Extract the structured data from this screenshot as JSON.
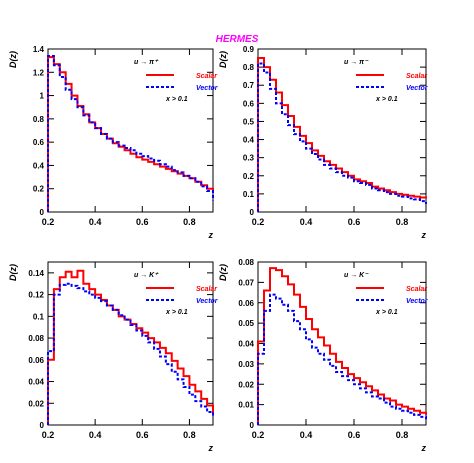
{
  "figure": {
    "title": "HERMES",
    "title_color": "#ff00ff"
  },
  "colors": {
    "scalar": "#ff0000",
    "vector": "#0000ff",
    "axis": "#000000"
  },
  "legend": {
    "scalar": "Scalar",
    "vector": "Vector"
  },
  "cut": "x > 0.1",
  "chart_data": [
    {
      "type": "line",
      "process": "u → π⁺",
      "ylabel": "D(z)",
      "xlabel": "z",
      "xlim": [
        0.2,
        0.9
      ],
      "ylim": [
        0,
        1.4
      ],
      "xticks": [
        0.2,
        0.4,
        0.6,
        0.8
      ],
      "yticks": [
        0,
        0.2,
        0.4,
        0.6,
        0.8,
        1,
        1.2,
        1.4
      ],
      "x": [
        0.2,
        0.225,
        0.25,
        0.275,
        0.3,
        0.325,
        0.35,
        0.375,
        0.4,
        0.425,
        0.45,
        0.475,
        0.5,
        0.525,
        0.55,
        0.575,
        0.6,
        0.625,
        0.65,
        0.675,
        0.7,
        0.725,
        0.75,
        0.775,
        0.8,
        0.825,
        0.85,
        0.875,
        0.9
      ],
      "series": [
        {
          "name": "Scalar",
          "values": [
            1.33,
            1.27,
            1.2,
            1.1,
            1.0,
            0.91,
            0.84,
            0.77,
            0.72,
            0.67,
            0.63,
            0.59,
            0.56,
            0.53,
            0.5,
            0.47,
            0.45,
            0.43,
            0.41,
            0.39,
            0.37,
            0.35,
            0.33,
            0.31,
            0.29,
            0.26,
            0.23,
            0.2,
            0.17
          ]
        },
        {
          "name": "Vector",
          "values": [
            1.34,
            1.26,
            1.16,
            1.05,
            0.97,
            0.9,
            0.83,
            0.77,
            0.72,
            0.67,
            0.63,
            0.6,
            0.57,
            0.55,
            0.53,
            0.5,
            0.48,
            0.46,
            0.44,
            0.41,
            0.39,
            0.36,
            0.34,
            0.31,
            0.29,
            0.26,
            0.22,
            0.18,
            0.1
          ]
        }
      ]
    },
    {
      "type": "line",
      "process": "u → π⁻",
      "ylabel": "D(z)",
      "xlabel": "z",
      "xlim": [
        0.2,
        0.9
      ],
      "ylim": [
        0,
        0.9
      ],
      "xticks": [
        0.2,
        0.4,
        0.6,
        0.8
      ],
      "yticks": [
        0,
        0.1,
        0.2,
        0.3,
        0.4,
        0.5,
        0.6,
        0.7,
        0.8,
        0.9
      ],
      "x": [
        0.2,
        0.225,
        0.25,
        0.275,
        0.3,
        0.325,
        0.35,
        0.375,
        0.4,
        0.425,
        0.45,
        0.475,
        0.5,
        0.525,
        0.55,
        0.575,
        0.6,
        0.625,
        0.65,
        0.675,
        0.7,
        0.725,
        0.75,
        0.775,
        0.8,
        0.825,
        0.85,
        0.875,
        0.9
      ],
      "series": [
        {
          "name": "Scalar",
          "values": [
            0.85,
            0.8,
            0.73,
            0.66,
            0.59,
            0.53,
            0.47,
            0.42,
            0.38,
            0.34,
            0.31,
            0.28,
            0.26,
            0.24,
            0.22,
            0.2,
            0.18,
            0.17,
            0.16,
            0.14,
            0.13,
            0.12,
            0.11,
            0.1,
            0.095,
            0.09,
            0.085,
            0.08,
            0.075
          ]
        },
        {
          "name": "Vector",
          "values": [
            0.82,
            0.77,
            0.68,
            0.6,
            0.54,
            0.48,
            0.43,
            0.39,
            0.35,
            0.32,
            0.29,
            0.26,
            0.24,
            0.22,
            0.2,
            0.19,
            0.17,
            0.16,
            0.15,
            0.13,
            0.12,
            0.11,
            0.1,
            0.09,
            0.085,
            0.075,
            0.07,
            0.06,
            0.045
          ]
        }
      ]
    },
    {
      "type": "line",
      "process": "u → K⁺",
      "ylabel": "D(z)",
      "xlabel": "z",
      "xlim": [
        0.2,
        0.9
      ],
      "ylim": [
        0,
        0.15
      ],
      "xticks": [
        0.2,
        0.4,
        0.6,
        0.8
      ],
      "yticks": [
        0,
        0.02,
        0.04,
        0.06,
        0.08,
        0.1,
        0.12,
        0.14
      ],
      "x": [
        0.2,
        0.225,
        0.25,
        0.275,
        0.3,
        0.325,
        0.35,
        0.375,
        0.4,
        0.425,
        0.45,
        0.475,
        0.5,
        0.525,
        0.55,
        0.575,
        0.6,
        0.625,
        0.65,
        0.675,
        0.7,
        0.725,
        0.75,
        0.775,
        0.8,
        0.825,
        0.85,
        0.875,
        0.9
      ],
      "series": [
        {
          "name": "Scalar",
          "values": [
            0.06,
            0.125,
            0.136,
            0.141,
            0.136,
            0.142,
            0.13,
            0.125,
            0.12,
            0.115,
            0.11,
            0.106,
            0.1,
            0.097,
            0.093,
            0.089,
            0.085,
            0.08,
            0.076,
            0.071,
            0.066,
            0.059,
            0.052,
            0.045,
            0.037,
            0.031,
            0.024,
            0.018,
            0.01
          ]
        },
        {
          "name": "Vector",
          "values": [
            0.068,
            0.12,
            0.129,
            0.13,
            0.128,
            0.126,
            0.123,
            0.12,
            0.117,
            0.114,
            0.11,
            0.106,
            0.101,
            0.097,
            0.092,
            0.087,
            0.082,
            0.076,
            0.07,
            0.063,
            0.056,
            0.049,
            0.042,
            0.035,
            0.028,
            0.022,
            0.017,
            0.012,
            0.008
          ]
        }
      ]
    },
    {
      "type": "line",
      "process": "u → K⁻",
      "ylabel": "D(z)",
      "xlabel": "z",
      "xlim": [
        0.2,
        0.9
      ],
      "ylim": [
        0,
        0.08
      ],
      "xticks": [
        0.2,
        0.4,
        0.6,
        0.8
      ],
      "yticks": [
        0,
        0.01,
        0.02,
        0.03,
        0.04,
        0.05,
        0.06,
        0.07,
        0.08
      ],
      "x": [
        0.2,
        0.225,
        0.25,
        0.275,
        0.3,
        0.325,
        0.35,
        0.375,
        0.4,
        0.425,
        0.45,
        0.475,
        0.5,
        0.525,
        0.55,
        0.575,
        0.6,
        0.625,
        0.65,
        0.675,
        0.7,
        0.725,
        0.75,
        0.775,
        0.8,
        0.825,
        0.85,
        0.875,
        0.9
      ],
      "series": [
        {
          "name": "Scalar",
          "values": [
            0.041,
            0.066,
            0.077,
            0.076,
            0.073,
            0.069,
            0.064,
            0.058,
            0.052,
            0.047,
            0.043,
            0.039,
            0.035,
            0.031,
            0.028,
            0.025,
            0.023,
            0.021,
            0.019,
            0.017,
            0.015,
            0.013,
            0.012,
            0.01,
            0.009,
            0.008,
            0.007,
            0.006,
            0.005
          ]
        },
        {
          "name": "Vector",
          "values": [
            0.035,
            0.056,
            0.064,
            0.062,
            0.059,
            0.056,
            0.051,
            0.047,
            0.042,
            0.038,
            0.035,
            0.032,
            0.029,
            0.026,
            0.024,
            0.022,
            0.02,
            0.018,
            0.016,
            0.014,
            0.013,
            0.011,
            0.009,
            0.008,
            0.007,
            0.006,
            0.005,
            0.004,
            0.002
          ]
        }
      ]
    }
  ]
}
